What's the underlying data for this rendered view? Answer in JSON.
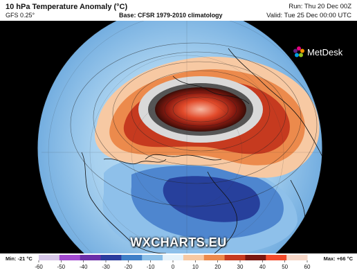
{
  "header": {
    "title": "10 hPa Temperature Anomaly (°C)",
    "model": "GFS 0.25°",
    "base": "Base: CFSR 1979-2010 climatology",
    "run": "Run: Thu 20 Dec 00Z",
    "valid": "Valid: Tue 25 Dec 00:00 UTC"
  },
  "brand": {
    "name": "MetDesk",
    "icon": "metdesk-flower-logo",
    "watermark": "WXCHARTS.EU"
  },
  "legend": {
    "min_label": "Min: -21 °C",
    "max_label": "Max: +66 °C",
    "ticks": [
      "-60",
      "-50",
      "-40",
      "-30",
      "-20",
      "-10",
      "0",
      "10",
      "20",
      "30",
      "40",
      "50",
      "60"
    ],
    "colors": [
      "#d6c6e8",
      "#a24ad0",
      "#6a2ea8",
      "#2b3c9e",
      "#3f7fc8",
      "#8cc0e8",
      "#e6f3fb",
      "#f7c9a3",
      "#ec8a4c",
      "#c63a1f",
      "#7a1710",
      "#f24a2a",
      "#f6d7c8"
    ]
  },
  "map": {
    "projection": "polar-stereographic",
    "features": [
      "warm-anomaly-ring",
      "cold-anomaly-north-atlantic",
      "coastlines",
      "isolines"
    ]
  }
}
